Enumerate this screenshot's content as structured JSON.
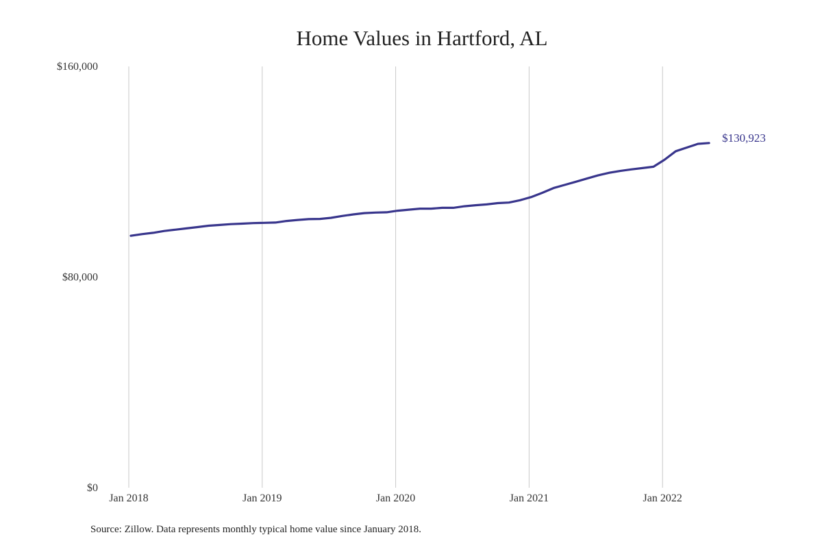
{
  "chart_data": {
    "type": "line",
    "title": "Home Values in Hartford, AL",
    "xlabel": "",
    "ylabel": "",
    "x_start": "2018-01",
    "x_frequency": "monthly",
    "x_ticks": [
      "Jan 2018",
      "Jan 2019",
      "Jan 2020",
      "Jan 2021",
      "Jan 2022"
    ],
    "y_ticks": [
      {
        "value": 0,
        "label": "$0"
      },
      {
        "value": 80000,
        "label": "$80,000"
      },
      {
        "value": 160000,
        "label": "$160,000"
      }
    ],
    "ylim": [
      0,
      160000
    ],
    "grid": "vertical lines at year ticks",
    "line_color": "#38358c",
    "end_label": "$130,923",
    "series": [
      {
        "values": [
          95700,
          96300,
          96800,
          97500,
          98000,
          98500,
          99000,
          99500,
          99800,
          100100,
          100300,
          100500,
          100600,
          100700,
          101300,
          101700,
          102000,
          102100,
          102500,
          103200,
          103800,
          104300,
          104500,
          104600,
          105200,
          105600,
          106000,
          106000,
          106300,
          106300,
          106900,
          107300,
          107600,
          108100,
          108300,
          109200,
          110400,
          112000,
          113800,
          115000,
          116200,
          117400,
          118600,
          119600,
          120300,
          120900,
          121400,
          121900,
          124600,
          127800,
          129200,
          130600,
          130923
        ]
      }
    ]
  },
  "source": "Source: Zillow. Data represents monthly typical home value since January 2018."
}
